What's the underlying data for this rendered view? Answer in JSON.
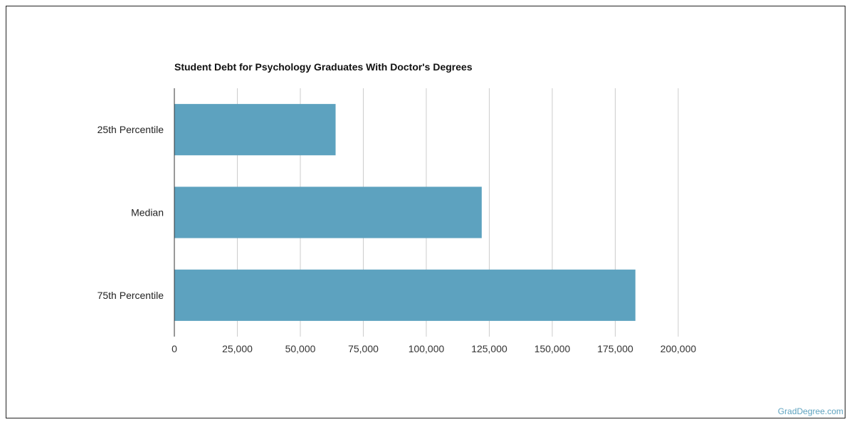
{
  "chart_data": {
    "type": "bar",
    "orientation": "horizontal",
    "title": "Student Debt for Psychology Graduates With Doctor's Degrees",
    "categories": [
      "25th Percentile",
      "Median",
      "75th Percentile"
    ],
    "values": [
      64000,
      122000,
      183000
    ],
    "xlim": [
      0,
      200000
    ],
    "xticks": [
      0,
      25000,
      50000,
      75000,
      100000,
      125000,
      150000,
      175000,
      200000
    ],
    "xtick_labels": [
      "0",
      "25,000",
      "50,000",
      "75,000",
      "100,000",
      "125,000",
      "150,000",
      "175,000",
      "200,000"
    ],
    "grid": true,
    "legend": "none",
    "bar_color": "#5DA2BF"
  },
  "watermark": {
    "text": "GradDegree.com",
    "color": "#5DA2BF"
  }
}
